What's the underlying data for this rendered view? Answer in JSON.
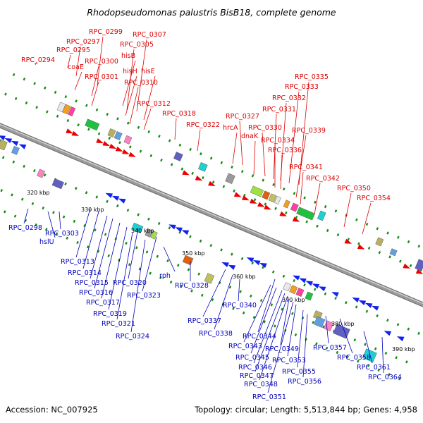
{
  "title": "Rhodopseudomonas palustris BisB18, complete genome",
  "footer": {
    "accession": "Accession: NC_007925",
    "summary": "Topology: circular; Length: 5,513,844 bp; Genes: 4,958"
  },
  "ticks": [
    "320 kbp",
    "330 kbp",
    "340 kbp",
    "350 kbp",
    "360 kbp",
    "370 kbp",
    "380 kbp",
    "390 kbp"
  ],
  "top_labels": [
    "RPC_0294",
    "RPC_0295",
    "RPC_0297",
    "RPC_0299",
    "coaE",
    "RPC_0300",
    "RPC_0301",
    "hisB",
    "RPC_0305",
    "RPC_0307",
    "hisH",
    "hisE",
    "RPC_0310",
    "RPC_0312",
    "RPC_0318",
    "RPC_0322",
    "hrcA",
    "RPC_0327",
    "dnaK",
    "RPC_0330",
    "RPC_0331",
    "RPC_0332",
    "RPC_0333",
    "RPC_0335",
    "RPC_0334",
    "RPC_0336",
    "RPC_0339",
    "RPC_0341",
    "RPC_0342",
    "RPC_0350",
    "RPC_0354"
  ],
  "bottom_labels": [
    "RPC_0298",
    "RPC_0303",
    "hslU",
    "RPC_0313",
    "RPC_0314",
    "RPC_0315",
    "RPC_0316",
    "RPC_0317",
    "RPC_0319",
    "RPC_0320",
    "RPC_0321",
    "RPC_0323",
    "rph",
    "RPC_0324",
    "RPC_0328",
    "RPC_0337",
    "RPC_0338",
    "RPC_0340",
    "RPC_0344",
    "RPC_0343",
    "RPC_0345",
    "RPC_0346",
    "RPC_0347",
    "RPC_0348",
    "RPC_0349",
    "RPC_0351",
    "RPC_0353",
    "RPC_0355",
    "RPC_0356",
    "RPC_0357",
    "RPC_0358",
    "RPC_0361",
    "RPC_0364"
  ],
  "colors": {
    "top_label": "#dd0000",
    "bottom_label": "#0000bb",
    "forward_gene": "#ee0000",
    "reverse_gene": "#1122ee",
    "backbone": "#9a9a9a",
    "track_dot": "#1a8a1a"
  }
}
